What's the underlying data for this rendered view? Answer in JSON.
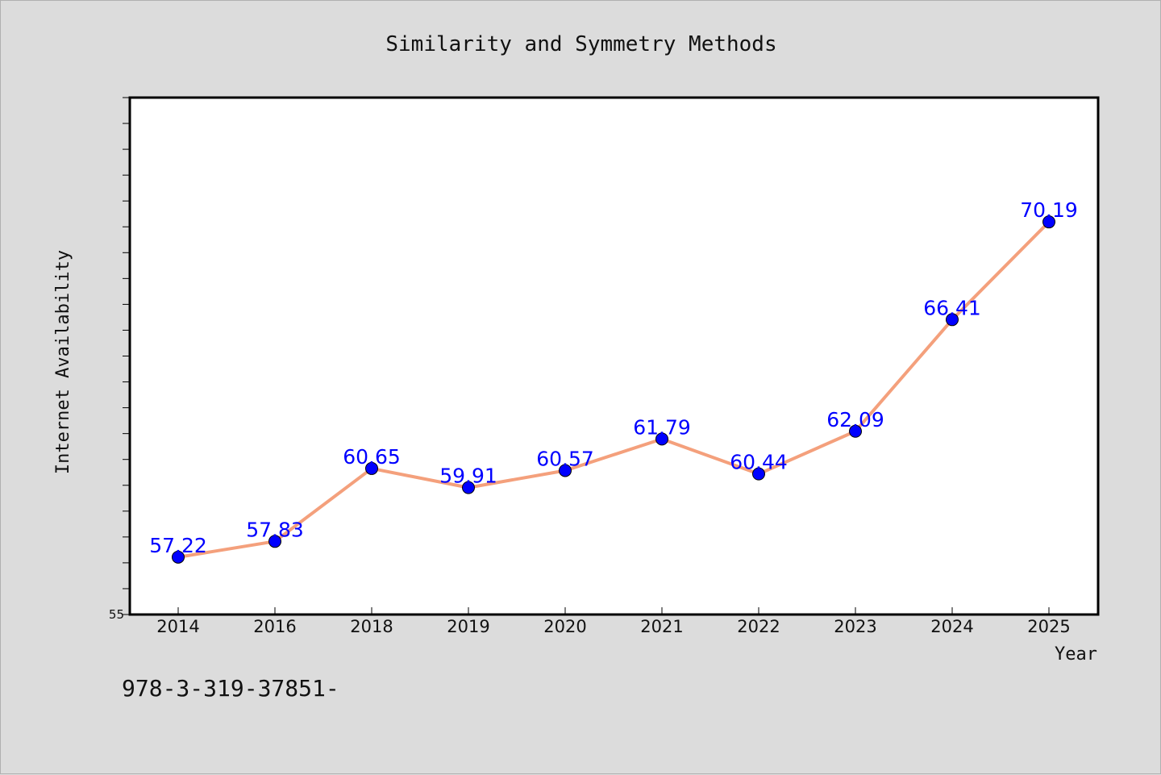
{
  "chart_data": {
    "type": "line",
    "title": "Similarity and Symmetry Methods",
    "xlabel": "Year",
    "ylabel": "Internet Availability",
    "categories": [
      "2014",
      "2016",
      "2018",
      "2019",
      "2020",
      "2021",
      "2022",
      "2023",
      "2024",
      "2025"
    ],
    "series": [
      {
        "values": [
          57.22,
          57.83,
          60.65,
          59.91,
          60.57,
          61.79,
          60.44,
          62.09,
          66.41,
          70.19
        ],
        "line_color": "#f4a07c",
        "marker_color": "#0000ff"
      }
    ],
    "data_labels": [
      "57.22",
      "57.83",
      "60.65",
      "59.91",
      "60.57",
      "61.79",
      "60.44",
      "62.09",
      "66.41",
      "70.19"
    ],
    "ylim": [
      55,
      75
    ],
    "y_tick_labels": [
      "55"
    ],
    "grid": false,
    "legend": "none"
  },
  "footer_text": "978-3-319-37851-",
  "colors": {
    "background": "#dcdcdc",
    "plot_background": "#ffffff",
    "line": "#f4a07c",
    "marker": "#0000ff",
    "data_label": "#0000ff"
  }
}
